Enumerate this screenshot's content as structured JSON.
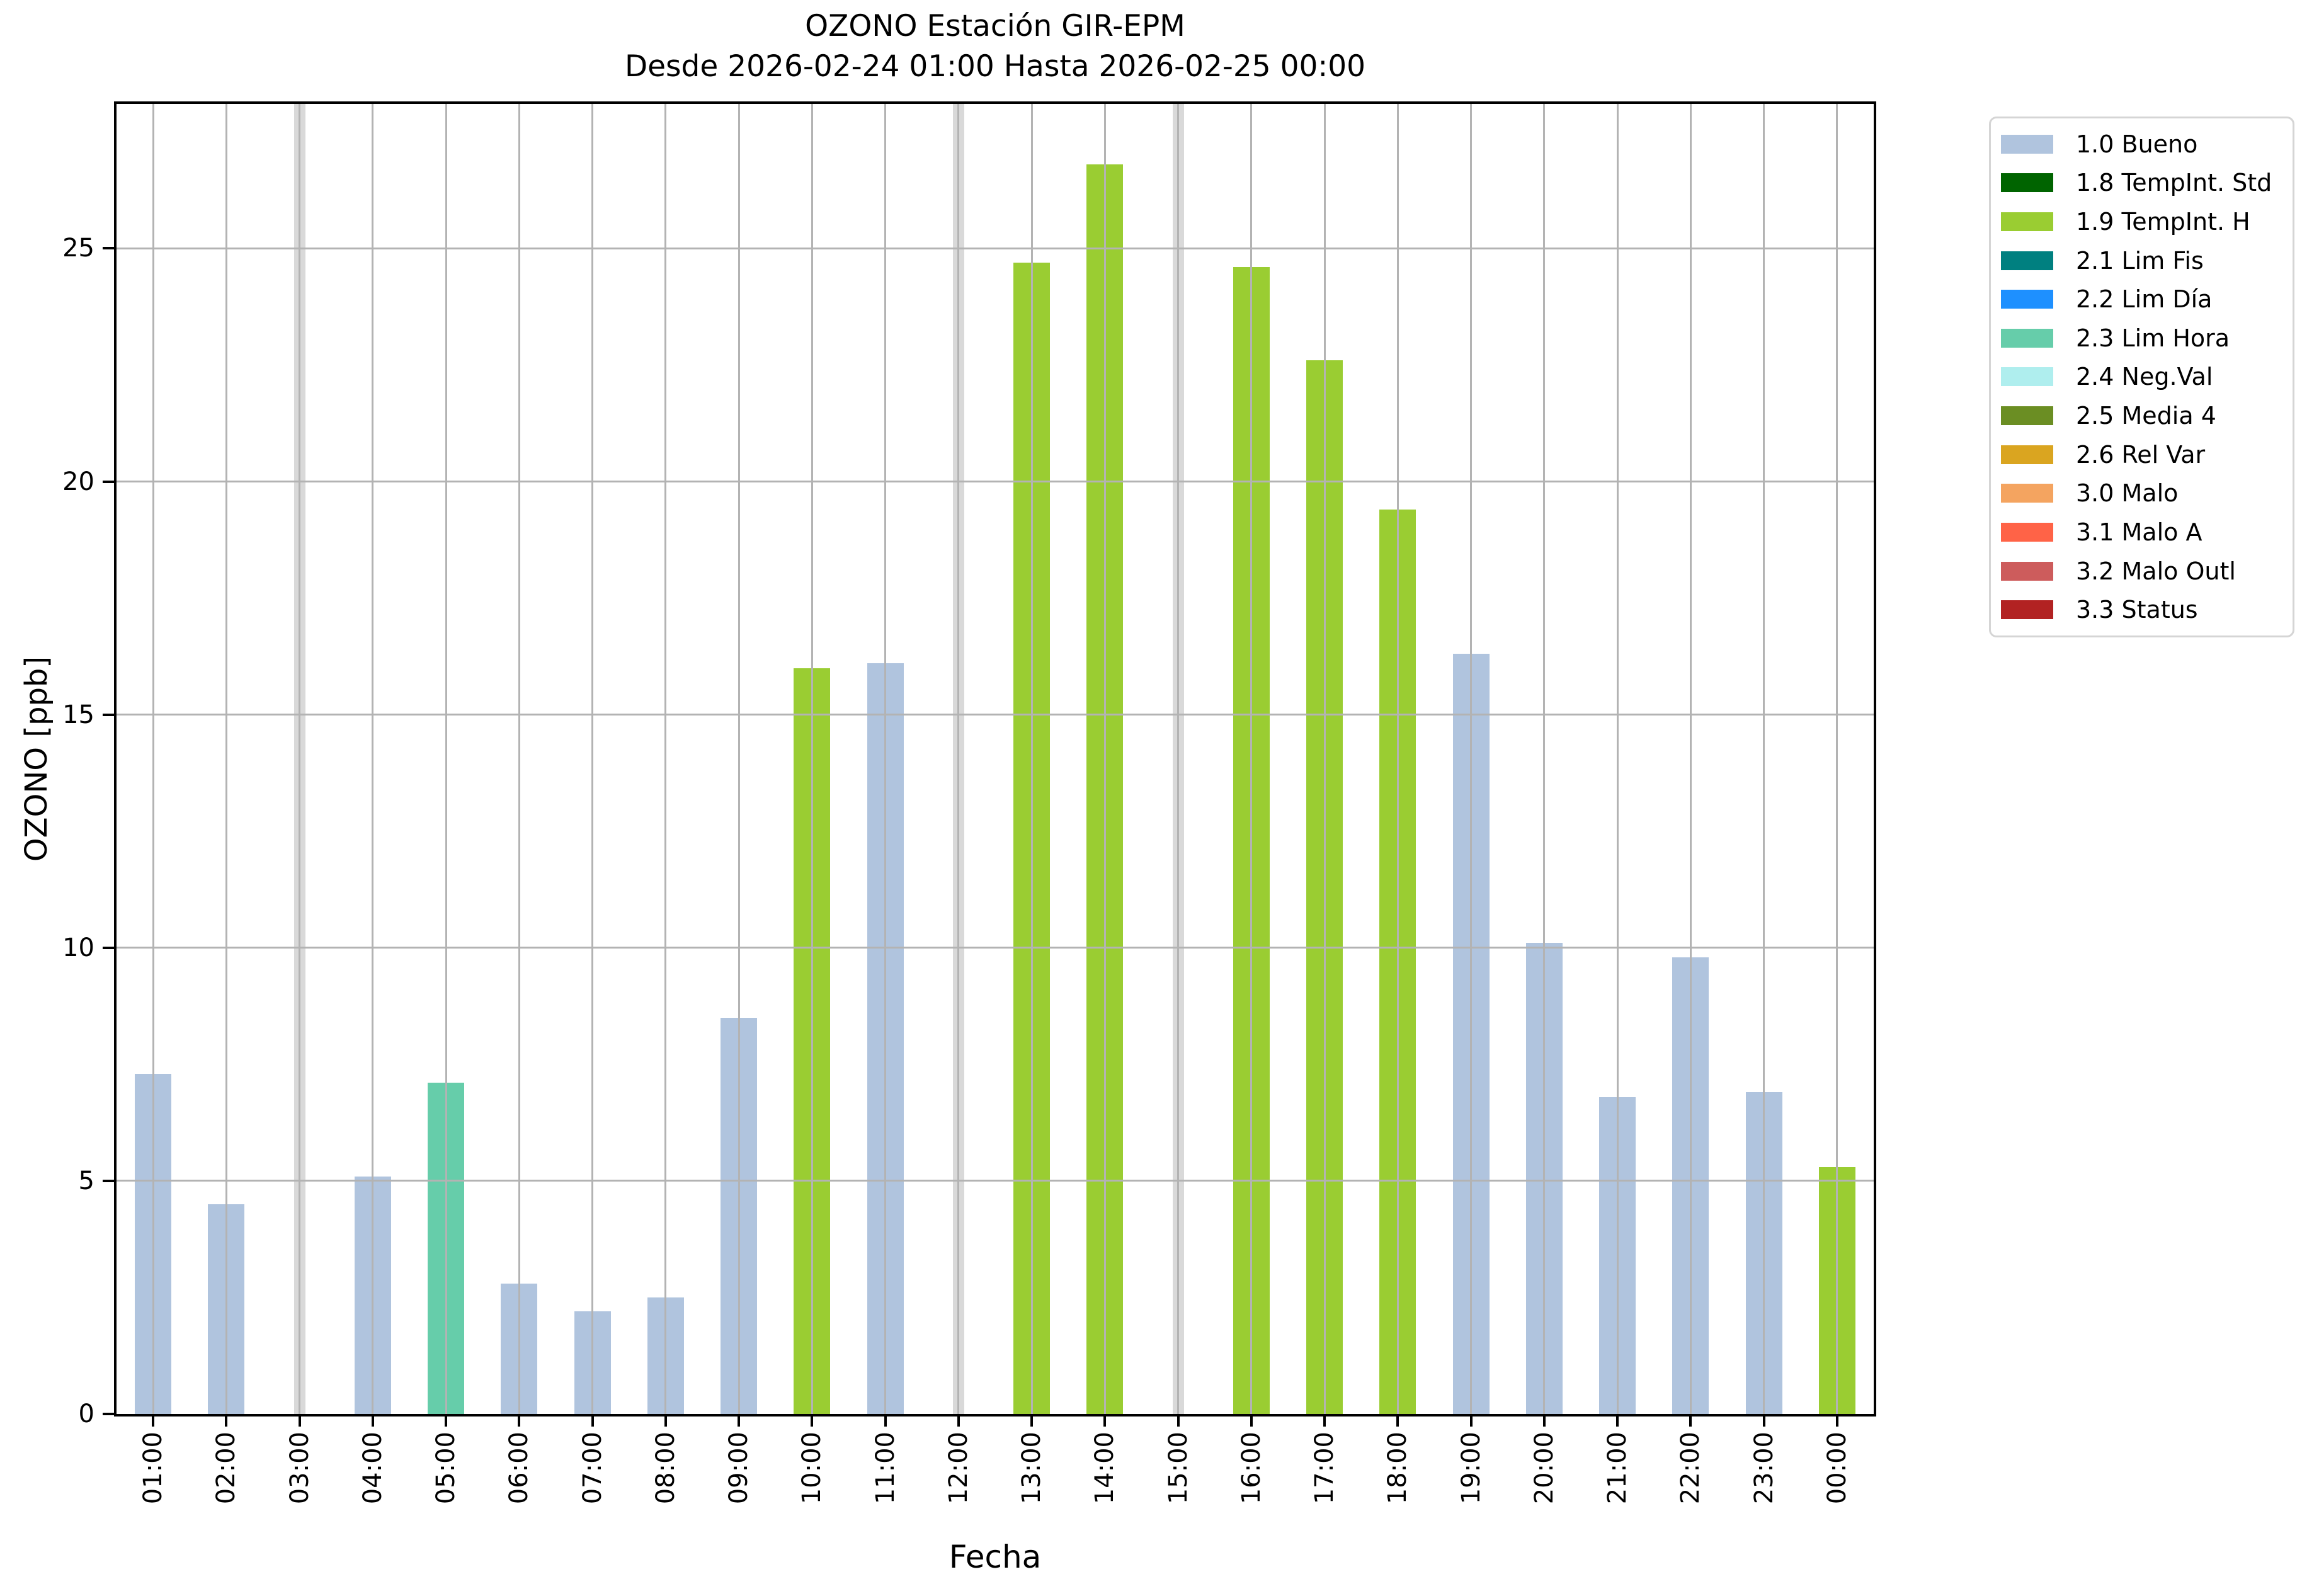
{
  "title": {
    "line1": "OZONO Estación GIR-EPM",
    "line2": "Desde 2026-02-24 01:00 Hasta 2026-02-25 00:00"
  },
  "axes": {
    "x_label": "Fecha",
    "y_label": "OZONO [ppb]"
  },
  "legend": {
    "items": [
      {
        "label": "1.0 Bueno",
        "color": "#b0c4de"
      },
      {
        "label": "1.8 TempInt. Std",
        "color": "#006400"
      },
      {
        "label": "1.9 TempInt. H",
        "color": "#9acd32"
      },
      {
        "label": "2.1 Lim Fis",
        "color": "#008080"
      },
      {
        "label": "2.2 Lim Día",
        "color": "#1e90ff"
      },
      {
        "label": "2.3 Lim Hora",
        "color": "#66cdaa"
      },
      {
        "label": "2.4 Neg.Val",
        "color": "#afeeee"
      },
      {
        "label": "2.5 Media 4",
        "color": "#6b8e23"
      },
      {
        "label": "2.6 Rel Var",
        "color": "#daa520"
      },
      {
        "label": "3.0 Malo",
        "color": "#f4a460"
      },
      {
        "label": "3.1 Malo A",
        "color": "#ff6347"
      },
      {
        "label": "3.2 Malo Outl",
        "color": "#cd5c5c"
      },
      {
        "label": "3.3 Status",
        "color": "#b22222"
      }
    ]
  },
  "chart_data": {
    "type": "bar",
    "title": "OZONO Estación GIR-EPM",
    "subtitle": "Desde 2026-02-24 01:00 Hasta 2026-02-25 00:00",
    "xlabel": "Fecha",
    "ylabel": "OZONO [ppb]",
    "ylim": [
      0,
      28.1
    ],
    "y_ticks": [
      0,
      5,
      10,
      15,
      20,
      25
    ],
    "grid": true,
    "legend_position": "outside upper right",
    "categories": [
      "01:00",
      "02:00",
      "03:00",
      "04:00",
      "05:00",
      "06:00",
      "07:00",
      "08:00",
      "09:00",
      "10:00",
      "11:00",
      "12:00",
      "13:00",
      "14:00",
      "15:00",
      "16:00",
      "17:00",
      "18:00",
      "19:00",
      "20:00",
      "21:00",
      "22:00",
      "23:00",
      "00:00"
    ],
    "values": [
      7.3,
      4.5,
      null,
      5.1,
      7.1,
      2.8,
      2.2,
      2.5,
      8.5,
      16.0,
      16.1,
      null,
      24.7,
      26.8,
      null,
      24.6,
      22.6,
      19.4,
      16.3,
      10.1,
      6.8,
      9.8,
      6.9,
      5.3
    ],
    "statuses": [
      "1.0 Bueno",
      "1.0 Bueno",
      null,
      "1.0 Bueno",
      "2.3 Lim Hora",
      "1.0 Bueno",
      "1.0 Bueno",
      "1.0 Bueno",
      "1.0 Bueno",
      "1.9 TempInt. H",
      "1.0 Bueno",
      null,
      "1.9 TempInt. H",
      "1.9 TempInt. H",
      null,
      "1.9 TempInt. H",
      "1.9 TempInt. H",
      "1.9 TempInt. H",
      "1.0 Bueno",
      "1.0 Bueno",
      "1.0 Bueno",
      "1.0 Bueno",
      "1.0 Bueno",
      "1.9 TempInt. H"
    ],
    "status_colors": {
      "1.0 Bueno": "#b0c4de",
      "1.9 TempInt. H": "#9acd32",
      "2.3 Lim Hora": "#66cdaa"
    },
    "missing_color": "#d9d9d9",
    "grid_color": "#b3b3b3"
  }
}
